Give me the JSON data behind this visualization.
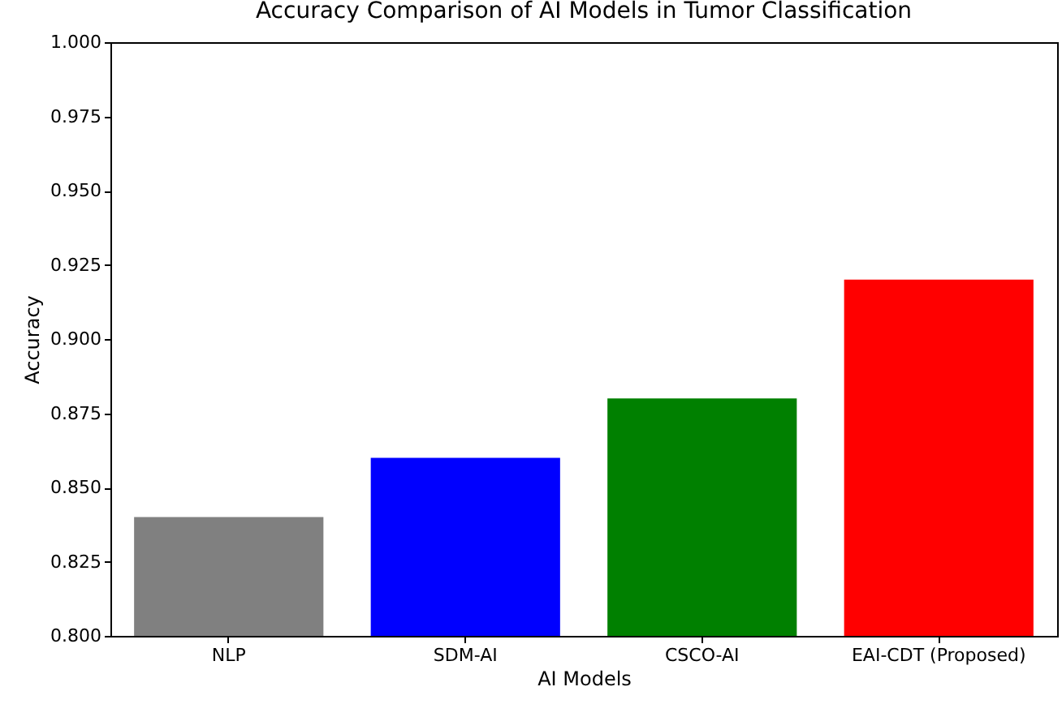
{
  "chart_data": {
    "type": "bar",
    "title": "Accuracy Comparison of AI Models in Tumor Classification",
    "xlabel": "AI Models",
    "ylabel": "Accuracy",
    "categories": [
      "NLP",
      "SDM-AI",
      "CSCO-AI",
      "EAI-CDT (Proposed)"
    ],
    "values": [
      0.84,
      0.86,
      0.88,
      0.92
    ],
    "colors": [
      "#808080",
      "#0000ff",
      "#008000",
      "#ff0000"
    ],
    "ylim": [
      0.8,
      1.0
    ],
    "yticks": [
      {
        "value": 0.8,
        "label": "0.800"
      },
      {
        "value": 0.825,
        "label": "0.825"
      },
      {
        "value": 0.85,
        "label": "0.850"
      },
      {
        "value": 0.875,
        "label": "0.875"
      },
      {
        "value": 0.9,
        "label": "0.900"
      },
      {
        "value": 0.925,
        "label": "0.925"
      },
      {
        "value": 0.95,
        "label": "0.950"
      },
      {
        "value": 0.975,
        "label": "0.975"
      },
      {
        "value": 1.0,
        "label": "1.000"
      }
    ],
    "grid": false,
    "legend": false
  }
}
